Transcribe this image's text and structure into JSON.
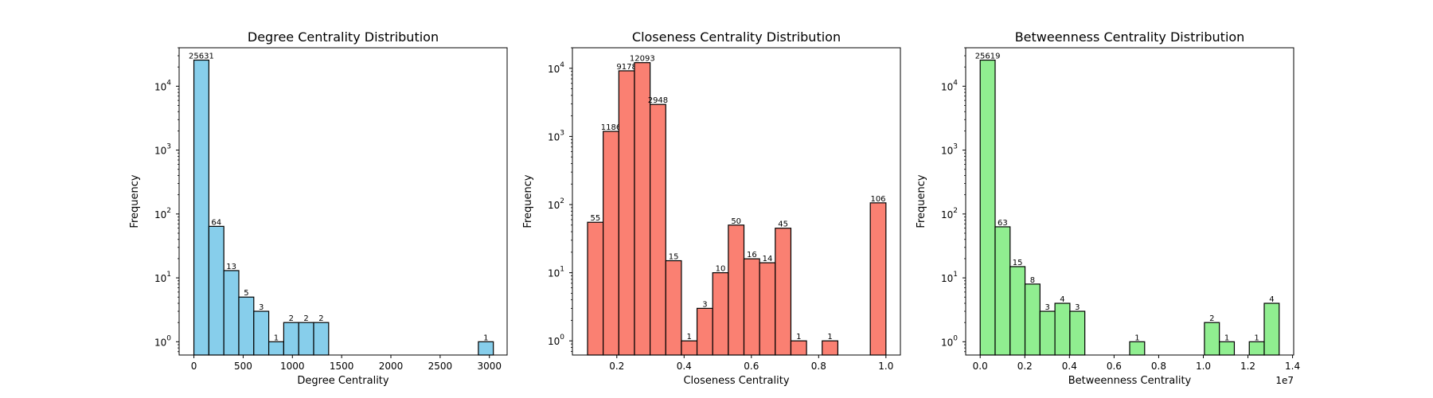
{
  "chart_data": [
    {
      "type": "bar",
      "title": "Degree Centrality Distribution",
      "xlabel": "Degree Centrality",
      "ylabel": "Frequency",
      "yscale": "log",
      "color": "#87ceeb",
      "edgecolor": "#000000",
      "xlim": [
        -150,
        3180
      ],
      "ylim": [
        0.62,
        40000
      ],
      "xticks": [
        0,
        500,
        1000,
        1500,
        2000,
        2500,
        3000
      ],
      "xtick_labels": [
        "0",
        "500",
        "1000",
        "1500",
        "2000",
        "2500",
        "3000"
      ],
      "yticks": [
        1,
        10,
        100,
        1000,
        10000
      ],
      "ytick_labels": [
        {
          "base": "10",
          "exp": "0"
        },
        {
          "base": "10",
          "exp": "1"
        },
        {
          "base": "10",
          "exp": "2"
        },
        {
          "base": "10",
          "exp": "3"
        },
        {
          "base": "10",
          "exp": "4"
        }
      ],
      "offset_text": "",
      "bins": [
        {
          "x0": 0,
          "x1": 152,
          "count": 25631,
          "label": "25631"
        },
        {
          "x0": 152,
          "x1": 304,
          "count": 64,
          "label": "64"
        },
        {
          "x0": 304,
          "x1": 456,
          "count": 13,
          "label": "13"
        },
        {
          "x0": 456,
          "x1": 608,
          "count": 5,
          "label": "5"
        },
        {
          "x0": 608,
          "x1": 760,
          "count": 3,
          "label": "3"
        },
        {
          "x0": 760,
          "x1": 912,
          "count": 1,
          "label": "1"
        },
        {
          "x0": 912,
          "x1": 1064,
          "count": 2,
          "label": "2"
        },
        {
          "x0": 1064,
          "x1": 1216,
          "count": 2,
          "label": "2"
        },
        {
          "x0": 1216,
          "x1": 1368,
          "count": 2,
          "label": "2"
        },
        {
          "x0": 2888,
          "x1": 3040,
          "count": 1,
          "label": "1"
        }
      ]
    },
    {
      "type": "bar",
      "title": "Closeness Centrality Distribution",
      "xlabel": "Closeness Centrality",
      "ylabel": "Frequency",
      "yscale": "log",
      "color": "#fa8072",
      "edgecolor": "#000000",
      "xlim": [
        0.068,
        1.043
      ],
      "ylim": [
        0.62,
        20000
      ],
      "xticks": [
        0.2,
        0.4,
        0.6,
        0.8,
        1.0
      ],
      "xtick_labels": [
        "0.2",
        "0.4",
        "0.6",
        "0.8",
        "1.0"
      ],
      "yticks": [
        1,
        10,
        100,
        1000,
        10000
      ],
      "ytick_labels": [
        {
          "base": "10",
          "exp": "0"
        },
        {
          "base": "10",
          "exp": "1"
        },
        {
          "base": "10",
          "exp": "2"
        },
        {
          "base": "10",
          "exp": "3"
        },
        {
          "base": "10",
          "exp": "4"
        }
      ],
      "offset_text": "",
      "bins": [
        {
          "x0": 0.113,
          "x1": 0.1595,
          "count": 55,
          "label": "55"
        },
        {
          "x0": 0.1595,
          "x1": 0.206,
          "count": 1186,
          "label": "1186"
        },
        {
          "x0": 0.206,
          "x1": 0.2525,
          "count": 9178,
          "label": "9178"
        },
        {
          "x0": 0.2525,
          "x1": 0.299,
          "count": 12093,
          "label": "12093"
        },
        {
          "x0": 0.299,
          "x1": 0.3455,
          "count": 2948,
          "label": "2948"
        },
        {
          "x0": 0.3455,
          "x1": 0.392,
          "count": 15,
          "label": "15"
        },
        {
          "x0": 0.392,
          "x1": 0.4385,
          "count": 1,
          "label": "1"
        },
        {
          "x0": 0.4385,
          "x1": 0.485,
          "count": 3,
          "label": "3"
        },
        {
          "x0": 0.485,
          "x1": 0.5315,
          "count": 10,
          "label": "10"
        },
        {
          "x0": 0.5315,
          "x1": 0.578,
          "count": 50,
          "label": "50"
        },
        {
          "x0": 0.578,
          "x1": 0.6245,
          "count": 16,
          "label": "16"
        },
        {
          "x0": 0.6245,
          "x1": 0.671,
          "count": 14,
          "label": "14"
        },
        {
          "x0": 0.671,
          "x1": 0.7175,
          "count": 45,
          "label": "45"
        },
        {
          "x0": 0.7175,
          "x1": 0.764,
          "count": 1,
          "label": "1"
        },
        {
          "x0": 0.8105,
          "x1": 0.857,
          "count": 1,
          "label": "1"
        },
        {
          "x0": 0.9535,
          "x1": 1.0,
          "count": 106,
          "label": "106"
        }
      ]
    },
    {
      "type": "bar",
      "title": "Betweenness Centrality Distribution",
      "xlabel": "Betweenness Centrality",
      "ylabel": "Frequency",
      "yscale": "log",
      "color": "#90ee90",
      "edgecolor": "#000000",
      "xlim": [
        -0.065,
        1.405
      ],
      "ylim": [
        0.62,
        40000
      ],
      "xticks": [
        0.0,
        0.2,
        0.4,
        0.6,
        0.8,
        1.0,
        1.2,
        1.4
      ],
      "xtick_labels": [
        "0.0",
        "0.2",
        "0.4",
        "0.6",
        "0.8",
        "1.0",
        "1.2",
        "1.4"
      ],
      "yticks": [
        1,
        10,
        100,
        1000,
        10000
      ],
      "ytick_labels": [
        {
          "base": "10",
          "exp": "0"
        },
        {
          "base": "10",
          "exp": "1"
        },
        {
          "base": "10",
          "exp": "2"
        },
        {
          "base": "10",
          "exp": "3"
        },
        {
          "base": "10",
          "exp": "4"
        }
      ],
      "offset_text": "1e7",
      "bins": [
        {
          "x0": 0.0,
          "x1": 0.067,
          "count": 25619,
          "label": "25619"
        },
        {
          "x0": 0.067,
          "x1": 0.134,
          "count": 63,
          "label": "63"
        },
        {
          "x0": 0.134,
          "x1": 0.201,
          "count": 15,
          "label": "15"
        },
        {
          "x0": 0.201,
          "x1": 0.268,
          "count": 8,
          "label": "8"
        },
        {
          "x0": 0.268,
          "x1": 0.335,
          "count": 3,
          "label": "3"
        },
        {
          "x0": 0.335,
          "x1": 0.402,
          "count": 4,
          "label": "4"
        },
        {
          "x0": 0.402,
          "x1": 0.469,
          "count": 3,
          "label": "3"
        },
        {
          "x0": 0.67,
          "x1": 0.737,
          "count": 1,
          "label": "1"
        },
        {
          "x0": 1.005,
          "x1": 1.072,
          "count": 2,
          "label": "2"
        },
        {
          "x0": 1.072,
          "x1": 1.139,
          "count": 1,
          "label": "1"
        },
        {
          "x0": 1.206,
          "x1": 1.273,
          "count": 1,
          "label": "1"
        },
        {
          "x0": 1.273,
          "x1": 1.34,
          "count": 4,
          "label": "4"
        }
      ]
    }
  ]
}
